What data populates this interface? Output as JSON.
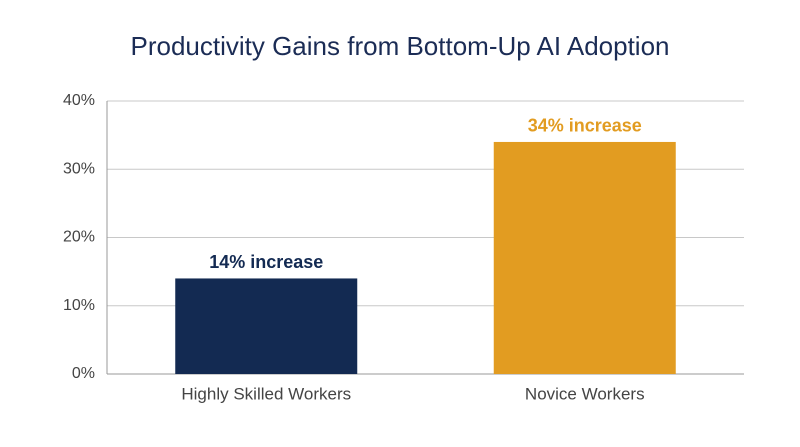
{
  "chart_data": {
    "type": "bar",
    "title": "Productivity Gains from Bottom-Up AI Adoption",
    "categories": [
      "Highly Skilled Workers",
      "Novice Workers"
    ],
    "values": [
      14,
      34
    ],
    "value_labels": [
      "14% increase",
      "34% increase"
    ],
    "colors": [
      "#132a52",
      "#e29c21"
    ],
    "ylim": [
      0,
      40
    ],
    "yticks": [
      {
        "value": 0,
        "label": "0%"
      },
      {
        "value": 10,
        "label": "10%"
      },
      {
        "value": 20,
        "label": "20%"
      },
      {
        "value": 30,
        "label": "30%"
      },
      {
        "value": 40,
        "label": "40%"
      }
    ],
    "grid": true
  }
}
